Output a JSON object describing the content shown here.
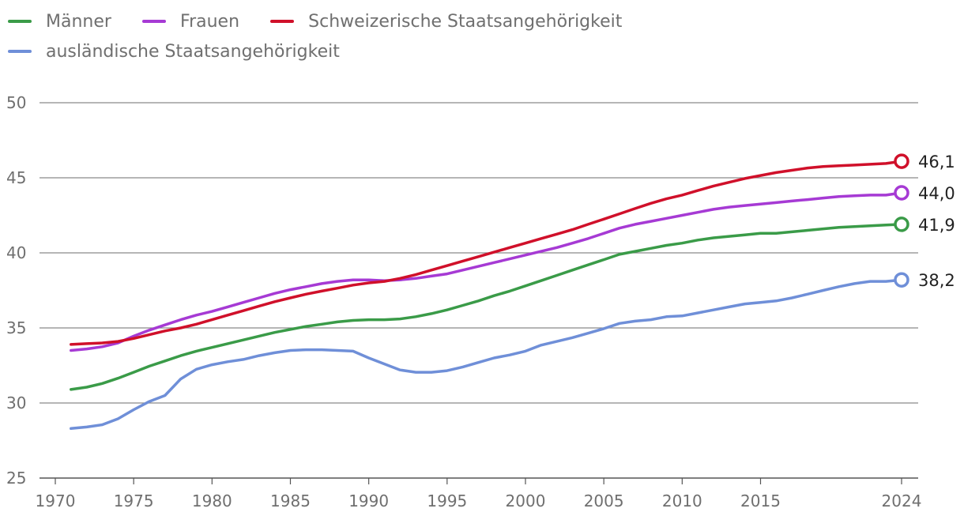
{
  "chart_data": {
    "type": "line",
    "title": "",
    "xlabel": "",
    "ylabel": "",
    "xlim": [
      1970,
      2024
    ],
    "ylim": [
      25,
      50
    ],
    "x_ticks": [
      1970,
      1975,
      1980,
      1985,
      1990,
      1995,
      2000,
      2005,
      2010,
      2015,
      2024
    ],
    "x_tick_labels": [
      "1970",
      "1975",
      "1980",
      "1985",
      "1990",
      "1995",
      "2000",
      "2005",
      "2010",
      "2015",
      "2024"
    ],
    "y_ticks": [
      25,
      30,
      35,
      40,
      45,
      50
    ],
    "y_tick_labels": [
      "25",
      "30",
      "35",
      "40",
      "45",
      "50"
    ],
    "grid": true,
    "legend_position": "top-left",
    "x": [
      1971,
      1972,
      1973,
      1974,
      1975,
      1976,
      1977,
      1978,
      1979,
      1980,
      1981,
      1982,
      1983,
      1984,
      1985,
      1986,
      1987,
      1988,
      1989,
      1990,
      1991,
      1992,
      1993,
      1994,
      1995,
      1996,
      1997,
      1998,
      1999,
      2000,
      2001,
      2002,
      2003,
      2004,
      2005,
      2006,
      2007,
      2008,
      2009,
      2010,
      2011,
      2012,
      2013,
      2014,
      2015,
      2016,
      2017,
      2018,
      2019,
      2020,
      2021,
      2022,
      2023,
      2024
    ],
    "series": [
      {
        "name": "Männer",
        "color": "#3a9b48",
        "end_label": "41,9",
        "values": [
          30.9,
          31.05,
          31.3,
          31.65,
          32.05,
          32.45,
          32.8,
          33.15,
          33.45,
          33.7,
          33.95,
          34.2,
          34.45,
          34.7,
          34.9,
          35.1,
          35.25,
          35.4,
          35.5,
          35.55,
          35.55,
          35.6,
          35.75,
          35.95,
          36.2,
          36.5,
          36.8,
          37.15,
          37.45,
          37.8,
          38.15,
          38.5,
          38.85,
          39.2,
          39.55,
          39.9,
          40.1,
          40.3,
          40.5,
          40.65,
          40.85,
          41.0,
          41.1,
          41.2,
          41.3,
          41.3,
          41.4,
          41.5,
          41.6,
          41.7,
          41.75,
          41.8,
          41.85,
          41.9
        ]
      },
      {
        "name": "Frauen",
        "color": "#a63ad4",
        "end_label": "44,0",
        "values": [
          33.5,
          33.6,
          33.75,
          34.0,
          34.45,
          34.85,
          35.2,
          35.55,
          35.85,
          36.1,
          36.4,
          36.7,
          37.0,
          37.3,
          37.55,
          37.75,
          37.95,
          38.1,
          38.2,
          38.2,
          38.15,
          38.2,
          38.3,
          38.45,
          38.6,
          38.85,
          39.1,
          39.35,
          39.6,
          39.85,
          40.1,
          40.35,
          40.65,
          40.95,
          41.3,
          41.65,
          41.9,
          42.1,
          42.3,
          42.5,
          42.7,
          42.9,
          43.05,
          43.15,
          43.25,
          43.35,
          43.45,
          43.55,
          43.65,
          43.75,
          43.8,
          43.85,
          43.85,
          44.0
        ]
      },
      {
        "name": "Schweizerische Staatsangehörigkeit",
        "color": "#d0102a",
        "end_label": "46,1",
        "values": [
          33.9,
          33.95,
          34.0,
          34.1,
          34.3,
          34.55,
          34.8,
          35.0,
          35.25,
          35.55,
          35.85,
          36.15,
          36.45,
          36.75,
          37.0,
          37.25,
          37.45,
          37.65,
          37.85,
          38.0,
          38.1,
          38.3,
          38.55,
          38.85,
          39.15,
          39.45,
          39.75,
          40.05,
          40.35,
          40.65,
          40.95,
          41.25,
          41.55,
          41.9,
          42.25,
          42.6,
          42.95,
          43.3,
          43.6,
          43.85,
          44.15,
          44.45,
          44.7,
          44.95,
          45.15,
          45.35,
          45.5,
          45.65,
          45.75,
          45.8,
          45.85,
          45.9,
          45.95,
          46.1
        ]
      },
      {
        "name": "ausländische Staatsangehörigkeit",
        "color": "#6f8fd8",
        "end_label": "38,2",
        "values": [
          28.3,
          28.4,
          28.55,
          28.95,
          29.55,
          30.1,
          30.5,
          31.6,
          32.25,
          32.55,
          32.75,
          32.9,
          33.15,
          33.35,
          33.5,
          33.55,
          33.55,
          33.5,
          33.45,
          33.0,
          32.6,
          32.2,
          32.05,
          32.05,
          32.15,
          32.4,
          32.7,
          33.0,
          33.2,
          33.45,
          33.85,
          34.1,
          34.35,
          34.65,
          34.95,
          35.3,
          35.45,
          35.55,
          35.75,
          35.8,
          36.0,
          36.2,
          36.4,
          36.6,
          36.7,
          36.8,
          37.0,
          37.25,
          37.5,
          37.75,
          37.95,
          38.1,
          38.1,
          38.2
        ]
      }
    ]
  }
}
